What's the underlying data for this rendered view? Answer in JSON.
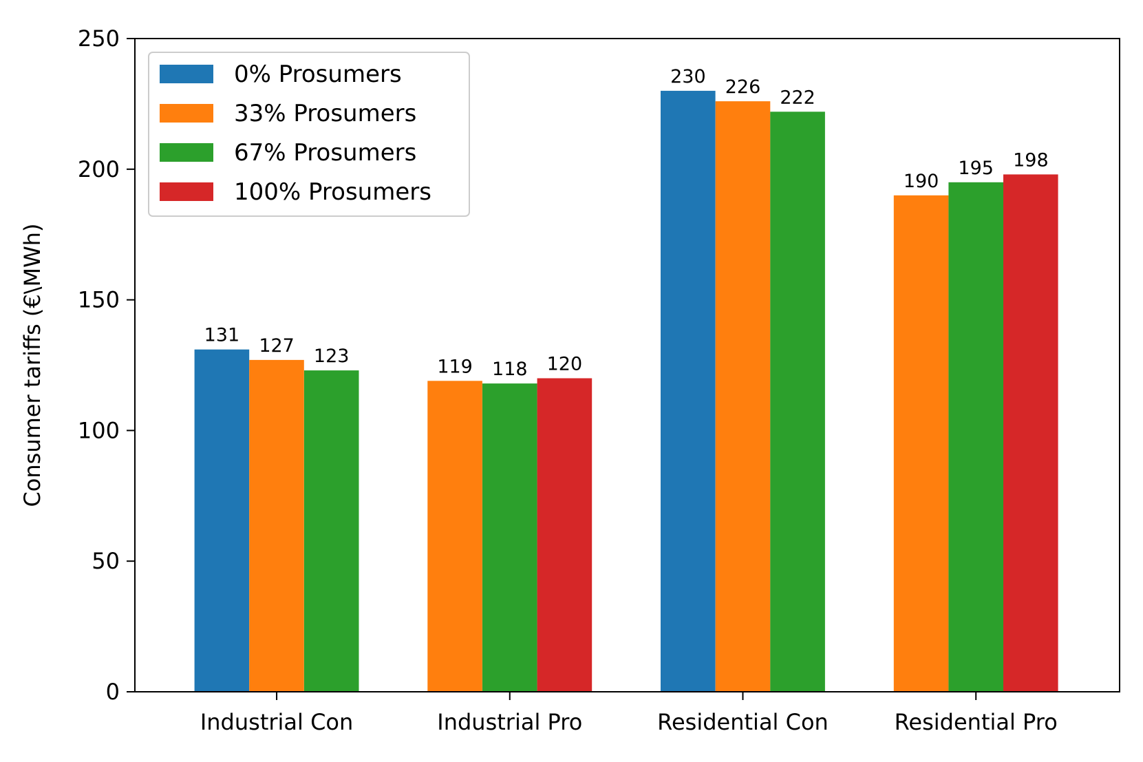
{
  "chart_data": {
    "type": "bar",
    "title": "",
    "xlabel": "",
    "ylabel": "Consumer tariffs (€\\MWh)",
    "ylim": [
      0,
      250
    ],
    "yticks": [
      0,
      50,
      100,
      150,
      200,
      250
    ],
    "grid": false,
    "legend_position": "top-left",
    "categories": [
      "Industrial Con",
      "Industrial Pro",
      "Residential Con",
      "Residential Pro"
    ],
    "series": [
      {
        "name": "0% Prosumers",
        "color": "#1f77b4",
        "values": [
          131,
          null,
          230,
          null
        ]
      },
      {
        "name": "33% Prosumers",
        "color": "#ff7f0e",
        "values": [
          127,
          119,
          226,
          190
        ]
      },
      {
        "name": "67% Prosumers",
        "color": "#2ca02c",
        "values": [
          123,
          118,
          222,
          195
        ]
      },
      {
        "name": "100% Prosumers",
        "color": "#d62728",
        "values": [
          null,
          120,
          null,
          198
        ]
      }
    ]
  }
}
